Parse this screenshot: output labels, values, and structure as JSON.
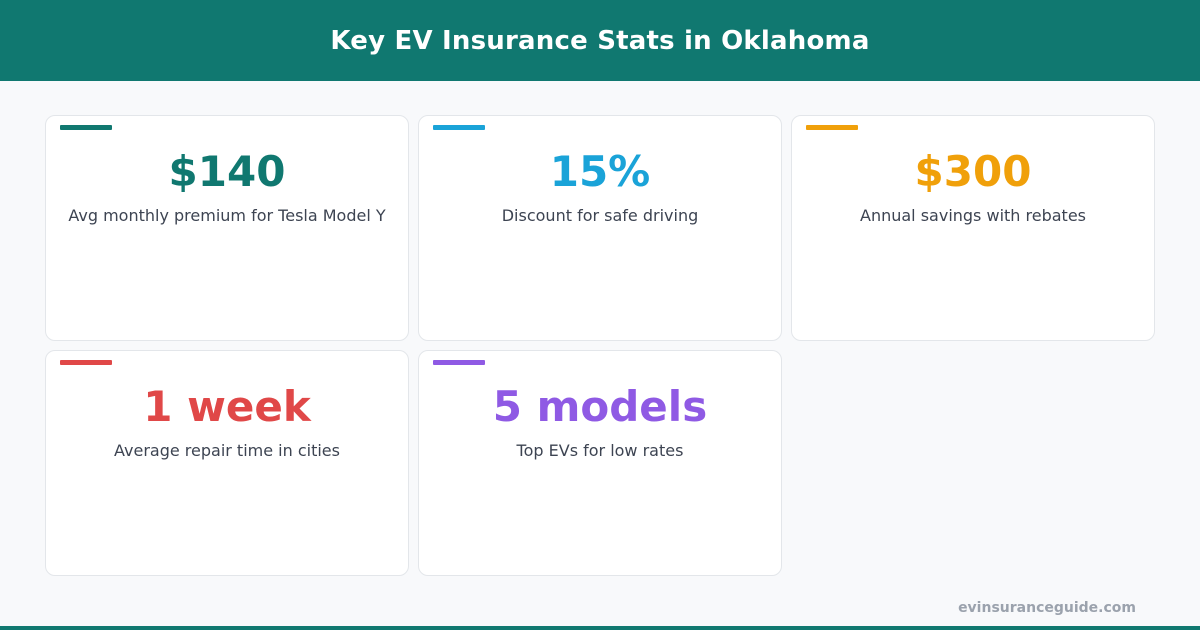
{
  "header": {
    "title": "Key EV Insurance Stats in Oklahoma"
  },
  "colors": {
    "header_bg": "#107870",
    "teal": "#107870",
    "blue": "#1aa3d8",
    "orange": "#f0a00a",
    "red": "#e04848",
    "purple": "#8f5ae4",
    "label_text": "#3d4452",
    "footer_text": "#9ba2ad"
  },
  "stats": [
    {
      "value": "$140",
      "label": "Avg monthly premium for Tesla Model Y",
      "color": "#107870"
    },
    {
      "value": "15%",
      "label": "Discount for safe driving",
      "color": "#1aa3d8"
    },
    {
      "value": "$300",
      "label": "Annual savings with rebates",
      "color": "#f0a00a"
    },
    {
      "value": "1 week",
      "label": "Average repair time in cities",
      "color": "#e04848"
    },
    {
      "value": "5 models",
      "label": "Top EVs for low rates",
      "color": "#8f5ae4"
    }
  ],
  "footer": {
    "site": "evinsuranceguide.com"
  }
}
